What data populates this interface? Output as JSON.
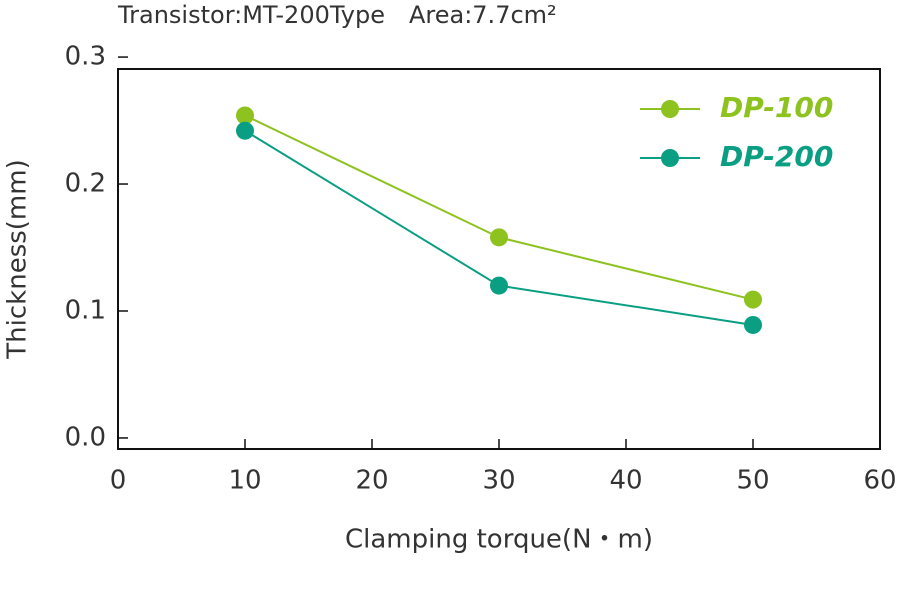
{
  "chart_data": {
    "type": "line",
    "subtitle": "Transistor:MT-200Type　Area:7.7cm²",
    "x_label": "Clamping torque(N・m)",
    "y_label": "Thickness(mm)",
    "x": [
      10,
      30,
      50
    ],
    "series": [
      {
        "name": "DP-100",
        "color": "#8dc21f",
        "values": [
          0.254,
          0.158,
          0.109
        ]
      },
      {
        "name": "DP-200",
        "color": "#0a9e82",
        "values": [
          0.242,
          0.12,
          0.089
        ]
      }
    ],
    "xlim": [
      0,
      60
    ],
    "xticks": [
      0,
      10,
      20,
      30,
      40,
      50,
      60
    ],
    "ylim": [
      -0.0087,
      0.2906
    ],
    "yticks": [
      {
        "value": 0,
        "label": "0.0"
      },
      0.1,
      0.2,
      0.3
    ],
    "grid": false,
    "legend": "upper right"
  }
}
